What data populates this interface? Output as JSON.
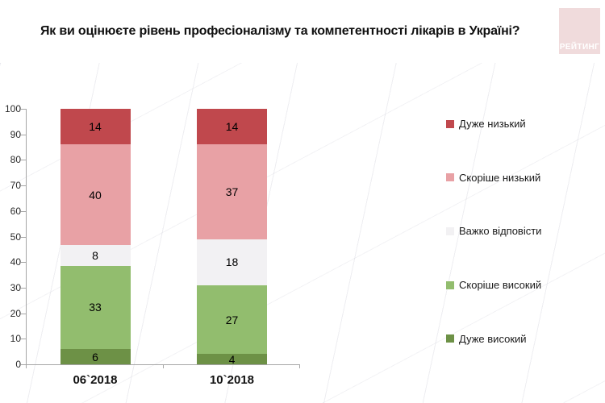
{
  "title": "Як ви оцінюєте рівень професіоналізму та компетентності лікарів в Україні?",
  "logo": {
    "text": "РЕЙТИНГ",
    "background": "#f0dbdc",
    "text_color": "#ffffff"
  },
  "chart_data": {
    "type": "bar",
    "stacked": true,
    "normalized_to_100": true,
    "categories": [
      "06`2018",
      "10`2018"
    ],
    "series": [
      {
        "name": "Дуже високий",
        "color": "#6d9146",
        "values": [
          6,
          4
        ]
      },
      {
        "name": "Скоріше високий",
        "color": "#92bd6e",
        "values": [
          33,
          27
        ]
      },
      {
        "name": "Важко відповісти",
        "color": "#f2f1f3",
        "values": [
          8,
          18
        ]
      },
      {
        "name": "Скоріше низький",
        "color": "#e8a1a5",
        "values": [
          40,
          37
        ]
      },
      {
        "name": "Дуже низький",
        "color": "#c0484d",
        "values": [
          14,
          14
        ]
      }
    ],
    "legend": [
      "Дуже низький",
      "Скоріше низький",
      "Важко відповісти",
      "Скоріше високий",
      "Дуже високий"
    ],
    "legend_position": "right",
    "ylim": [
      0,
      100
    ],
    "yticks": [
      0,
      10,
      20,
      30,
      40,
      50,
      60,
      70,
      80,
      90,
      100
    ],
    "grid": false,
    "axis_color": "#a6a6a6",
    "label_color": "#000000"
  }
}
